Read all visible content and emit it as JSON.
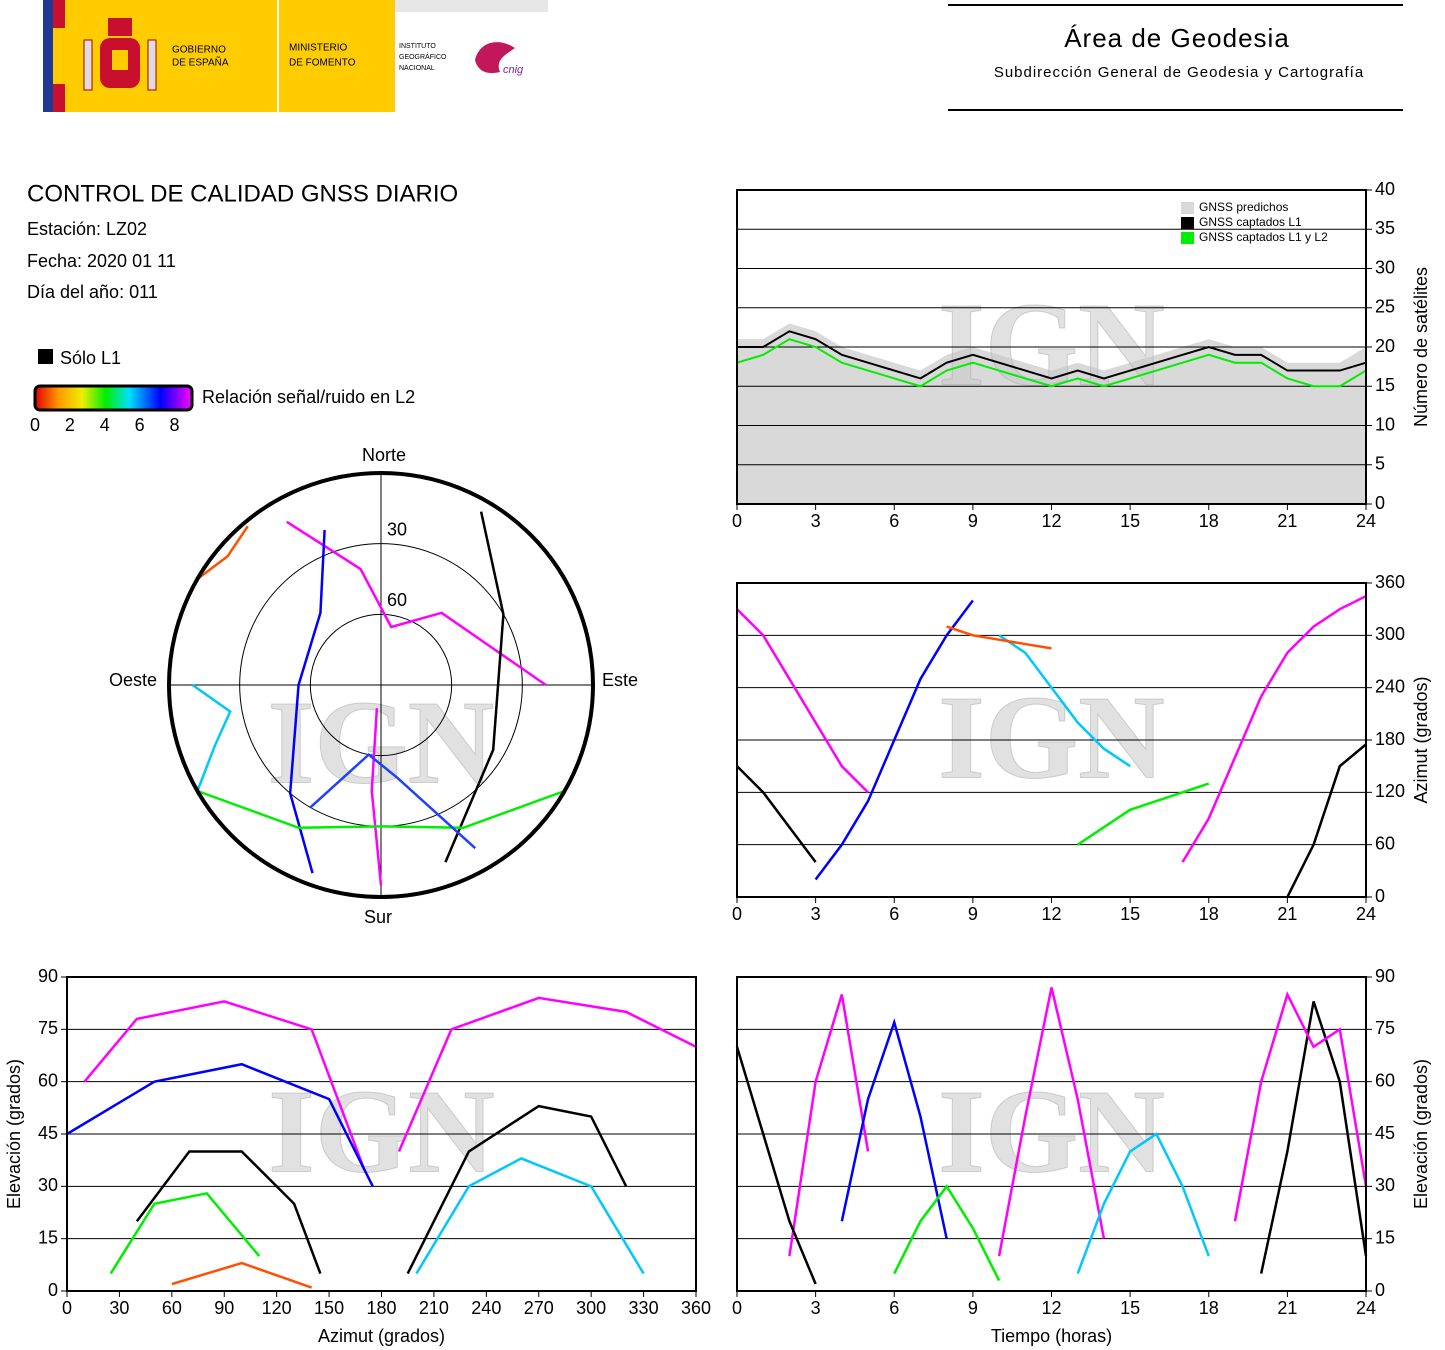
{
  "header": {
    "logos": {
      "gobierno": [
        "GOBIERNO",
        "DE ESPAÑA"
      ],
      "ministerio": [
        "MINISTERIO",
        "DE FOMENTO"
      ],
      "instituto": [
        "INSTITUTO",
        "GEOGRÁFICO",
        "NACIONAL"
      ],
      "cnig": "cnig"
    },
    "title": "Área de Geodesia",
    "subtitle": "Subdirección General de Geodesia y Cartografía"
  },
  "report": {
    "title": "CONTROL DE CALIDAD GNSS DIARIO",
    "station": "Estación: LZ02",
    "date": "Fecha: 2020 01 11",
    "doy": "Día del año: 011"
  },
  "legend": {
    "only_l1": "Sólo L1",
    "snr_label": "Relación señal/ruido en L2",
    "snr_lim": [
      0,
      9
    ],
    "snr_ticks": [
      0,
      2,
      4,
      6,
      8
    ]
  },
  "watermark": "IGN",
  "chart_data": [
    {
      "type": "line",
      "ylabel": "Número de satélites",
      "yaxis_position": "right",
      "xlim": [
        0,
        24
      ],
      "xticks": [
        0,
        3,
        6,
        9,
        12,
        15,
        18,
        21,
        24
      ],
      "ylim": [
        0,
        40
      ],
      "yticks": [
        0,
        5,
        10,
        15,
        20,
        25,
        30,
        35,
        40
      ],
      "grid": true,
      "legend": "top-right",
      "x": [
        0,
        1,
        2,
        3,
        4,
        5,
        6,
        7,
        8,
        9,
        10,
        11,
        12,
        13,
        14,
        15,
        16,
        17,
        18,
        19,
        20,
        21,
        22,
        23,
        24
      ],
      "series": [
        {
          "name": "GNSS predichos",
          "color": "#d9d9d9",
          "area": true,
          "values": [
            21,
            21,
            23,
            22,
            20,
            19,
            18,
            17,
            19,
            20,
            19,
            18,
            17,
            18,
            17,
            18,
            19,
            20,
            21,
            20,
            20,
            18,
            18,
            18,
            20
          ]
        },
        {
          "name": "GNSS captados L1",
          "color": "#000000",
          "values": [
            20,
            20,
            22,
            21,
            19,
            18,
            17,
            16,
            18,
            19,
            18,
            17,
            16,
            17,
            16,
            17,
            18,
            19,
            20,
            19,
            19,
            17,
            17,
            17,
            18
          ]
        },
        {
          "name": "GNSS captados L1 y L2",
          "color": "#00ee00",
          "values": [
            18,
            19,
            21,
            20,
            18,
            17,
            16,
            15,
            17,
            18,
            17,
            16,
            15,
            16,
            15,
            16,
            17,
            18,
            19,
            18,
            18,
            16,
            15,
            15,
            17
          ]
        }
      ]
    },
    {
      "type": "polar",
      "directions": {
        "north": "Norte",
        "south": "Sur",
        "east": "Este",
        "west": "Oeste"
      },
      "rlim": [
        0,
        90
      ],
      "rticks": [
        30,
        60
      ],
      "series": [
        {
          "color": "#ff00ff",
          "x": [
            330,
            350,
            10,
            40,
            90
          ],
          "values": [
            10,
            40,
            65,
            50,
            20
          ]
        },
        {
          "color": "#0000ff",
          "x": [
            200,
            220,
            270,
            320,
            340
          ],
          "values": [
            5,
            30,
            55,
            50,
            20
          ]
        },
        {
          "color": "#000000",
          "x": [
            30,
            60,
            120,
            160
          ],
          "values": [
            5,
            30,
            35,
            10
          ]
        },
        {
          "color": "#ff00ff",
          "x": [
            180,
            185,
            190
          ],
          "values": [
            5,
            45,
            80
          ]
        },
        {
          "color": "#00c8ff",
          "x": [
            240,
            250,
            260,
            270
          ],
          "values": [
            0,
            15,
            25,
            10
          ]
        },
        {
          "color": "#00ee00",
          "x": [
            120,
            150,
            180,
            210,
            240
          ],
          "values": [
            0,
            20,
            30,
            20,
            0
          ]
        },
        {
          "color": "#ff5000",
          "x": [
            300,
            310,
            320
          ],
          "values": [
            0,
            5,
            2
          ]
        },
        {
          "color": "#2040ff",
          "x": [
            150,
            170,
            190,
            210
          ],
          "values": [
            10,
            50,
            60,
            30
          ]
        }
      ]
    },
    {
      "type": "line",
      "ylabel": "Azimut (grados)",
      "yaxis_position": "right",
      "xlim": [
        0,
        24
      ],
      "xticks": [
        0,
        3,
        6,
        9,
        12,
        15,
        18,
        21,
        24
      ],
      "ylim": [
        0,
        360
      ],
      "yticks": [
        0,
        60,
        120,
        180,
        240,
        300,
        360
      ],
      "grid": true,
      "series": [
        {
          "color": "#ff00ff",
          "x": [
            0,
            1,
            2,
            3,
            4,
            5
          ],
          "values": [
            330,
            300,
            250,
            200,
            150,
            120
          ]
        },
        {
          "color": "#0000ff",
          "x": [
            3,
            4,
            5,
            6,
            7,
            8,
            9
          ],
          "values": [
            20,
            60,
            110,
            180,
            250,
            300,
            340
          ]
        },
        {
          "color": "#000000",
          "x": [
            0,
            1,
            2,
            3
          ],
          "values": [
            150,
            120,
            80,
            40
          ]
        },
        {
          "color": "#00c8ff",
          "x": [
            10,
            11,
            12,
            13,
            14,
            15
          ],
          "values": [
            300,
            280,
            240,
            200,
            170,
            150
          ]
        },
        {
          "color": "#00ee00",
          "x": [
            13,
            14,
            15,
            16,
            17,
            18
          ],
          "values": [
            60,
            80,
            100,
            110,
            120,
            130
          ]
        },
        {
          "color": "#ff00ff",
          "x": [
            17,
            18,
            19,
            20,
            21,
            22,
            23,
            24
          ],
          "values": [
            40,
            90,
            160,
            230,
            280,
            310,
            330,
            345
          ]
        },
        {
          "color": "#ff5000",
          "x": [
            8,
            9,
            10,
            11,
            12
          ],
          "values": [
            310,
            300,
            295,
            290,
            285
          ]
        },
        {
          "color": "#000000",
          "x": [
            21,
            22,
            23,
            24
          ],
          "values": [
            0,
            60,
            150,
            175
          ]
        }
      ]
    },
    {
      "type": "line",
      "xlabel": "Azimut (grados)",
      "ylabel": "Elevación (grados)",
      "yaxis_position": "left",
      "xlim": [
        0,
        360
      ],
      "xticks": [
        0,
        30,
        60,
        90,
        120,
        150,
        180,
        210,
        240,
        270,
        300,
        330,
        360
      ],
      "ylim": [
        0,
        90
      ],
      "yticks": [
        0,
        15,
        30,
        45,
        60,
        75,
        90
      ],
      "grid": true,
      "series": [
        {
          "color": "#ff00ff",
          "x": [
            10,
            40,
            90,
            140,
            170
          ],
          "values": [
            60,
            78,
            83,
            75,
            35
          ]
        },
        {
          "color": "#ff00ff",
          "x": [
            190,
            220,
            270,
            320,
            360
          ],
          "values": [
            40,
            75,
            84,
            80,
            70
          ]
        },
        {
          "color": "#0000ff",
          "x": [
            0,
            50,
            100,
            150,
            175
          ],
          "values": [
            45,
            60,
            65,
            55,
            30
          ]
        },
        {
          "color": "#000000",
          "x": [
            40,
            70,
            100,
            130,
            145
          ],
          "values": [
            20,
            40,
            40,
            25,
            5
          ]
        },
        {
          "color": "#00ee00",
          "x": [
            25,
            50,
            80,
            110
          ],
          "values": [
            5,
            25,
            28,
            10
          ]
        },
        {
          "color": "#00c8ff",
          "x": [
            200,
            230,
            260,
            300,
            330
          ],
          "values": [
            5,
            30,
            38,
            30,
            5
          ]
        },
        {
          "color": "#000000",
          "x": [
            195,
            230,
            270,
            300,
            320
          ],
          "values": [
            5,
            40,
            53,
            50,
            30
          ]
        },
        {
          "color": "#ff5000",
          "x": [
            60,
            100,
            140
          ],
          "values": [
            2,
            8,
            1
          ]
        }
      ]
    },
    {
      "type": "line",
      "xlabel": "Tiempo (horas)",
      "ylabel": "Elevación (grados)",
      "yaxis_position": "right",
      "xlim": [
        0,
        24
      ],
      "xticks": [
        0,
        3,
        6,
        9,
        12,
        15,
        18,
        21,
        24
      ],
      "ylim": [
        0,
        90
      ],
      "yticks": [
        0,
        15,
        30,
        45,
        60,
        75,
        90
      ],
      "grid": true,
      "series": [
        {
          "color": "#ff00ff",
          "x": [
            2,
            3,
            4,
            5
          ],
          "values": [
            10,
            60,
            85,
            40
          ]
        },
        {
          "color": "#0000ff",
          "x": [
            4,
            5,
            6,
            7,
            8
          ],
          "values": [
            20,
            55,
            77,
            50,
            15
          ]
        },
        {
          "color": "#000000",
          "x": [
            0,
            1,
            2,
            3
          ],
          "values": [
            70,
            45,
            20,
            2
          ]
        },
        {
          "color": "#ff00ff",
          "x": [
            10,
            11,
            12,
            13,
            14
          ],
          "values": [
            10,
            50,
            87,
            55,
            15
          ]
        },
        {
          "color": "#00c8ff",
          "x": [
            13,
            14,
            15,
            16,
            17,
            18
          ],
          "values": [
            5,
            25,
            40,
            45,
            30,
            10
          ]
        },
        {
          "color": "#000000",
          "x": [
            20,
            21,
            22,
            23,
            24
          ],
          "values": [
            5,
            40,
            83,
            60,
            10
          ]
        },
        {
          "color": "#00ee00",
          "x": [
            6,
            7,
            8,
            9,
            10
          ],
          "values": [
            5,
            20,
            30,
            18,
            3
          ]
        },
        {
          "color": "#ff00ff",
          "x": [
            19,
            20,
            21,
            22,
            23,
            24
          ],
          "values": [
            20,
            60,
            85,
            70,
            75,
            30
          ]
        }
      ]
    }
  ]
}
